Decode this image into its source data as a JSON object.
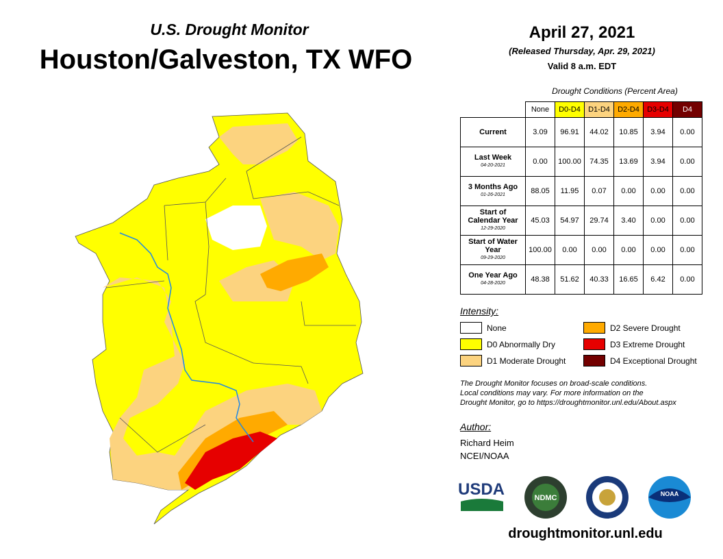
{
  "header": {
    "title": "U.S. Drought Monitor",
    "subtitle": "Houston/Galveston, TX WFO"
  },
  "date": {
    "main": "April 27, 2021",
    "released": "(Released Thursday, Apr. 29, 2021)",
    "valid": "Valid 8 a.m. EDT"
  },
  "table": {
    "caption": "Drought Conditions (Percent Area)",
    "columns": [
      "None",
      "D0-D4",
      "D1-D4",
      "D2-D4",
      "D3-D4",
      "D4"
    ],
    "rows": [
      {
        "label": "Current",
        "values": [
          "3.09",
          "96.91",
          "44.02",
          "10.85",
          "3.94",
          "0.00"
        ]
      },
      {
        "label": "Last Week",
        "date": "04-20-2021",
        "values": [
          "0.00",
          "100.00",
          "74.35",
          "13.69",
          "3.94",
          "0.00"
        ]
      },
      {
        "label": "3 Months Ago",
        "date": "01-26-2021",
        "values": [
          "88.05",
          "11.95",
          "0.07",
          "0.00",
          "0.00",
          "0.00"
        ]
      },
      {
        "label": "Start of Calendar Year",
        "date": "12-29-2020",
        "values": [
          "45.03",
          "54.97",
          "29.74",
          "3.40",
          "0.00",
          "0.00"
        ]
      },
      {
        "label": "Start of Water Year",
        "date": "09-29-2020",
        "values": [
          "100.00",
          "0.00",
          "0.00",
          "0.00",
          "0.00",
          "0.00"
        ]
      },
      {
        "label": "One Year Ago",
        "date": "04-28-2020",
        "values": [
          "48.38",
          "51.62",
          "40.33",
          "16.65",
          "6.42",
          "0.00"
        ]
      }
    ]
  },
  "legend": {
    "title": "Intensity:",
    "items": [
      {
        "label": "None",
        "color": "#ffffff"
      },
      {
        "label": "D0 Abnormally Dry",
        "color": "#ffff00"
      },
      {
        "label": "D1 Moderate Drought",
        "color": "#fcd37f"
      },
      {
        "label": "D2 Severe Drought",
        "color": "#ffaa00"
      },
      {
        "label": "D3 Extreme Drought",
        "color": "#e60000"
      },
      {
        "label": "D4 Exceptional Drought",
        "color": "#730000"
      }
    ]
  },
  "note": [
    "The Drought Monitor focuses on broad-scale conditions.",
    "Local conditions may vary. For more information on the",
    "Drought Monitor, go to https://droughtmonitor.unl.edu/About.aspx"
  ],
  "author": {
    "heading": "Author:",
    "lines": [
      "Richard Heim",
      "NCEI/NOAA"
    ]
  },
  "logos": {
    "usda": "USDA",
    "ndmc": "NDMC",
    "noaa": "NOAA"
  },
  "url": "droughtmonitor.unl.edu"
}
